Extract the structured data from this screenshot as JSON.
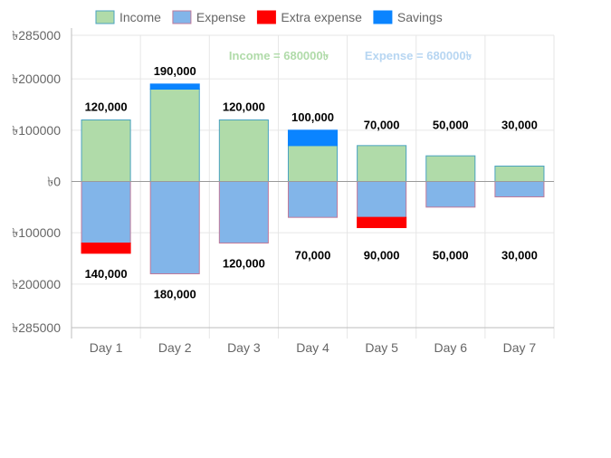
{
  "chart_data": {
    "type": "bar",
    "stacked": true,
    "categories": [
      "Day 1",
      "Day 2",
      "Day 3",
      "Day 4",
      "Day 5",
      "Day 6",
      "Day 7"
    ],
    "series": [
      {
        "name": "Income",
        "values": [
          120000,
          180000,
          120000,
          70000,
          70000,
          50000,
          30000
        ],
        "color": "#b0dba9",
        "border": "#4aa3c0"
      },
      {
        "name": "Expense",
        "values": [
          -120000,
          -180000,
          -120000,
          -70000,
          -70000,
          -50000,
          -30000
        ],
        "color": "#82b5e9",
        "border": "#c07a9a"
      },
      {
        "name": "Extra expense",
        "values": [
          -20000,
          0,
          0,
          0,
          -20000,
          0,
          0
        ],
        "color": "#ff0000",
        "border": "#ff0000"
      },
      {
        "name": "Savings",
        "values": [
          0,
          10000,
          0,
          30000,
          0,
          0,
          0
        ],
        "color": "#0a84ff",
        "border": "#0a84ff"
      }
    ],
    "top_labels": [
      "120,000",
      "190,000",
      "120,000",
      "100,000",
      "70,000",
      "50,000",
      "30,000"
    ],
    "bottom_labels": [
      "140,000",
      "180,000",
      "120,000",
      "70,000",
      "90,000",
      "50,000",
      "30,000"
    ],
    "y_ticks": [
      {
        "value": 285000,
        "label": "৳285000"
      },
      {
        "value": 200000,
        "label": "৳200000"
      },
      {
        "value": 100000,
        "label": "৳100000"
      },
      {
        "value": 0,
        "label": "৳0"
      },
      {
        "value": -100000,
        "label": "৳100000"
      },
      {
        "value": -200000,
        "label": "৳200000"
      },
      {
        "value": -285000,
        "label": "৳285000"
      }
    ],
    "ylim": [
      -285000,
      285000
    ],
    "annotations": [
      {
        "text": "Income = 680000৳",
        "color": "#b0dba9"
      },
      {
        "text": "Expense = 680000৳",
        "color": "#b7d6f2"
      }
    ],
    "legend_position": "top",
    "grid": true
  }
}
